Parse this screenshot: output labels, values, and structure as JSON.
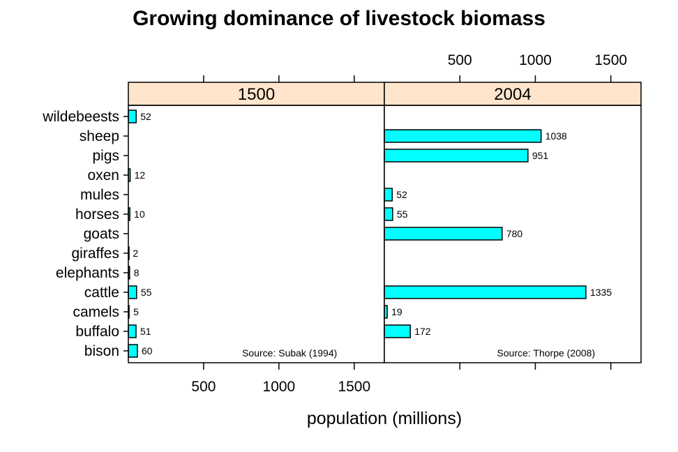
{
  "chart_data": {
    "type": "bar",
    "orientation": "horizontal",
    "title": "Growing dominance of livestock biomass",
    "xlabel": "population (millions)",
    "ylabel": "",
    "xlim": [
      0,
      1700
    ],
    "x_ticks": [
      500,
      1000,
      1500
    ],
    "x_tick_labels": [
      "500",
      "1000",
      "1500"
    ],
    "categories": [
      "bison",
      "buffalo",
      "camels",
      "cattle",
      "elephants",
      "giraffes",
      "goats",
      "horses",
      "mules",
      "oxen",
      "pigs",
      "sheep",
      "wildebeests"
    ],
    "colors": {
      "bar_fill": "#00ffff",
      "strip_fill": "#ffe5cc"
    },
    "panels": [
      {
        "strip": "1500",
        "source": "Source: Subak (1994)",
        "values": [
          60,
          51,
          5,
          55,
          8,
          2,
          null,
          10,
          null,
          12,
          null,
          null,
          52
        ],
        "value_labels": [
          "60",
          "51",
          "5",
          "55",
          "8",
          "2",
          null,
          "10",
          null,
          "12",
          null,
          null,
          "52"
        ]
      },
      {
        "strip": "2004",
        "source": "Source: Thorpe (2008)",
        "values": [
          null,
          172,
          19,
          1335,
          null,
          null,
          780,
          55,
          52,
          null,
          951,
          1038,
          null
        ],
        "value_labels": [
          null,
          "172",
          "19",
          "1335",
          null,
          null,
          "780",
          "55",
          "52",
          null,
          "951",
          "1038",
          null
        ]
      }
    ]
  }
}
